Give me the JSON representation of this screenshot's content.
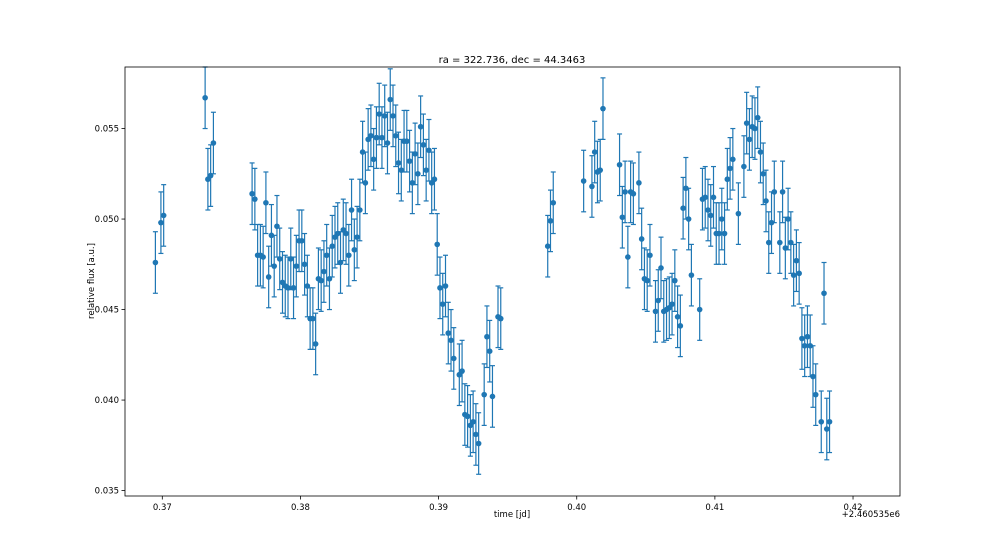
{
  "chart_data": {
    "type": "scatter",
    "title": "ra = 322.736, dec = 44.3463",
    "xlabel": "time [jd]",
    "ylabel": "relative flux [a.u.]",
    "x_offset_label": "+2.460535e6",
    "xlim": [
      0.3673,
      0.4234
    ],
    "ylim": [
      0.0347,
      0.0584
    ],
    "xticks": [
      0.37,
      0.38,
      0.39,
      0.4,
      0.41,
      0.42
    ],
    "xtick_labels": [
      "0.37",
      "0.38",
      "0.39",
      "0.40",
      "0.41",
      "0.42"
    ],
    "yticks": [
      0.035,
      0.04,
      0.045,
      0.05,
      0.055
    ],
    "ytick_labels": [
      "0.035",
      "0.040",
      "0.045",
      "0.050",
      "0.055"
    ],
    "grid": false,
    "legend": "none",
    "color": "#1f77b4",
    "points": [
      [
        0.3695,
        0.0476,
        0.0017
      ],
      [
        0.3699,
        0.0498,
        0.0017
      ],
      [
        0.3701,
        0.0502,
        0.0017
      ],
      [
        0.3731,
        0.0567,
        0.0017
      ],
      [
        0.3733,
        0.0522,
        0.0017
      ],
      [
        0.3735,
        0.0524,
        0.0017
      ],
      [
        0.3737,
        0.0542,
        0.0017
      ],
      [
        0.3765,
        0.0514,
        0.0017
      ],
      [
        0.3767,
        0.0511,
        0.0017
      ],
      [
        0.3769,
        0.048,
        0.0017
      ],
      [
        0.3771,
        0.048,
        0.0017
      ],
      [
        0.3773,
        0.0479,
        0.0017
      ],
      [
        0.3775,
        0.0509,
        0.0017
      ],
      [
        0.3777,
        0.0468,
        0.0017
      ],
      [
        0.3779,
        0.0491,
        0.0017
      ],
      [
        0.3781,
        0.0474,
        0.0017
      ],
      [
        0.3783,
        0.0496,
        0.0017
      ],
      [
        0.3785,
        0.0478,
        0.0017
      ],
      [
        0.3787,
        0.0465,
        0.0017
      ],
      [
        0.3789,
        0.0463,
        0.0017
      ],
      [
        0.3791,
        0.0462,
        0.0017
      ],
      [
        0.3793,
        0.0478,
        0.0017
      ],
      [
        0.3795,
        0.0462,
        0.0017
      ],
      [
        0.3797,
        0.0474,
        0.0017
      ],
      [
        0.3799,
        0.0488,
        0.0017
      ],
      [
        0.3801,
        0.0488,
        0.0017
      ],
      [
        0.3803,
        0.0475,
        0.0017
      ],
      [
        0.3805,
        0.0463,
        0.0017
      ],
      [
        0.3807,
        0.0445,
        0.0017
      ],
      [
        0.3809,
        0.0445,
        0.0017
      ],
      [
        0.3811,
        0.0431,
        0.0017
      ],
      [
        0.3813,
        0.0467,
        0.0017
      ],
      [
        0.3815,
        0.0466,
        0.0017
      ],
      [
        0.3817,
        0.0471,
        0.0017
      ],
      [
        0.3819,
        0.048,
        0.0017
      ],
      [
        0.3821,
        0.0467,
        0.0017
      ],
      [
        0.3823,
        0.0485,
        0.0017
      ],
      [
        0.3825,
        0.049,
        0.0017
      ],
      [
        0.3827,
        0.0492,
        0.0017
      ],
      [
        0.3829,
        0.0476,
        0.0017
      ],
      [
        0.3831,
        0.0494,
        0.0017
      ],
      [
        0.3833,
        0.0492,
        0.0017
      ],
      [
        0.3835,
        0.048,
        0.0017
      ],
      [
        0.3837,
        0.0505,
        0.0017
      ],
      [
        0.3839,
        0.0483,
        0.0017
      ],
      [
        0.3841,
        0.049,
        0.0017
      ],
      [
        0.3843,
        0.0505,
        0.0017
      ],
      [
        0.3845,
        0.0537,
        0.0017
      ],
      [
        0.3847,
        0.052,
        0.0017
      ],
      [
        0.3849,
        0.0544,
        0.0017
      ],
      [
        0.3851,
        0.0546,
        0.0017
      ],
      [
        0.3853,
        0.0533,
        0.0017
      ],
      [
        0.3855,
        0.0545,
        0.0017
      ],
      [
        0.3857,
        0.0558,
        0.0017
      ],
      [
        0.3859,
        0.0545,
        0.0017
      ],
      [
        0.3861,
        0.0557,
        0.0017
      ],
      [
        0.3863,
        0.0542,
        0.0017
      ],
      [
        0.3865,
        0.0566,
        0.0017
      ],
      [
        0.3867,
        0.0557,
        0.0017
      ],
      [
        0.3869,
        0.0546,
        0.0017
      ],
      [
        0.3871,
        0.0531,
        0.0017
      ],
      [
        0.3873,
        0.0527,
        0.0017
      ],
      [
        0.3875,
        0.0543,
        0.0017
      ],
      [
        0.3877,
        0.0543,
        0.0017
      ],
      [
        0.3879,
        0.0532,
        0.0017
      ],
      [
        0.3881,
        0.052,
        0.0017
      ],
      [
        0.3883,
        0.0536,
        0.0017
      ],
      [
        0.3885,
        0.0525,
        0.0017
      ],
      [
        0.3887,
        0.0551,
        0.0017
      ],
      [
        0.3889,
        0.0541,
        0.0017
      ],
      [
        0.3891,
        0.0527,
        0.0017
      ],
      [
        0.3893,
        0.0538,
        0.0017
      ],
      [
        0.3895,
        0.052,
        0.0017
      ],
      [
        0.3897,
        0.0522,
        0.0017
      ],
      [
        0.3899,
        0.0486,
        0.0017
      ],
      [
        0.3901,
        0.0462,
        0.0017
      ],
      [
        0.3903,
        0.0453,
        0.0017
      ],
      [
        0.3905,
        0.0463,
        0.0017
      ],
      [
        0.3907,
        0.0437,
        0.0017
      ],
      [
        0.3909,
        0.0433,
        0.0017
      ],
      [
        0.3911,
        0.0423,
        0.0017
      ],
      [
        0.3915,
        0.0414,
        0.0017
      ],
      [
        0.3917,
        0.0416,
        0.0017
      ],
      [
        0.3919,
        0.0392,
        0.0017
      ],
      [
        0.3921,
        0.0391,
        0.0017
      ],
      [
        0.3923,
        0.0386,
        0.0017
      ],
      [
        0.3925,
        0.0388,
        0.0017
      ],
      [
        0.3927,
        0.0381,
        0.0017
      ],
      [
        0.3929,
        0.0376,
        0.0017
      ],
      [
        0.3933,
        0.0403,
        0.0017
      ],
      [
        0.3935,
        0.0435,
        0.0017
      ],
      [
        0.3937,
        0.0427,
        0.0017
      ],
      [
        0.3939,
        0.0402,
        0.0017
      ],
      [
        0.3943,
        0.0446,
        0.0017
      ],
      [
        0.3945,
        0.0445,
        0.0017
      ],
      [
        0.3979,
        0.0485,
        0.0017
      ],
      [
        0.3981,
        0.0499,
        0.0017
      ],
      [
        0.3983,
        0.0509,
        0.0017
      ],
      [
        0.4005,
        0.0521,
        0.0017
      ],
      [
        0.4011,
        0.0518,
        0.0017
      ],
      [
        0.4013,
        0.0537,
        0.0017
      ],
      [
        0.4015,
        0.0526,
        0.0017
      ],
      [
        0.4017,
        0.0527,
        0.0017
      ],
      [
        0.4019,
        0.0561,
        0.0017
      ],
      [
        0.4031,
        0.053,
        0.0017
      ],
      [
        0.4033,
        0.0501,
        0.0017
      ],
      [
        0.4035,
        0.0515,
        0.0017
      ],
      [
        0.4037,
        0.0479,
        0.0017
      ],
      [
        0.4039,
        0.0515,
        0.0017
      ],
      [
        0.4041,
        0.0514,
        0.0017
      ],
      [
        0.4045,
        0.052,
        0.0017
      ],
      [
        0.4047,
        0.0489,
        0.0017
      ],
      [
        0.4049,
        0.0467,
        0.0017
      ],
      [
        0.4051,
        0.0466,
        0.0017
      ],
      [
        0.4053,
        0.048,
        0.0017
      ],
      [
        0.4057,
        0.0449,
        0.0017
      ],
      [
        0.4059,
        0.0455,
        0.0017
      ],
      [
        0.4061,
        0.0473,
        0.0017
      ],
      [
        0.4063,
        0.0449,
        0.0017
      ],
      [
        0.4065,
        0.045,
        0.0017
      ],
      [
        0.4067,
        0.0451,
        0.0017
      ],
      [
        0.4069,
        0.0453,
        0.0017
      ],
      [
        0.4071,
        0.0466,
        0.0017
      ],
      [
        0.4073,
        0.0446,
        0.0017
      ],
      [
        0.4075,
        0.0441,
        0.0017
      ],
      [
        0.4077,
        0.0506,
        0.0017
      ],
      [
        0.4079,
        0.0517,
        0.0017
      ],
      [
        0.4081,
        0.05,
        0.0017
      ],
      [
        0.4083,
        0.0469,
        0.0017
      ],
      [
        0.4089,
        0.045,
        0.0017
      ],
      [
        0.4091,
        0.0511,
        0.0017
      ],
      [
        0.4093,
        0.0512,
        0.0017
      ],
      [
        0.4095,
        0.0505,
        0.0017
      ],
      [
        0.4097,
        0.0502,
        0.0017
      ],
      [
        0.4099,
        0.0512,
        0.0017
      ],
      [
        0.4101,
        0.0492,
        0.0017
      ],
      [
        0.4103,
        0.0492,
        0.0017
      ],
      [
        0.4105,
        0.05,
        0.0017
      ],
      [
        0.4107,
        0.0492,
        0.0017
      ],
      [
        0.4109,
        0.0522,
        0.0017
      ],
      [
        0.4111,
        0.0528,
        0.0017
      ],
      [
        0.4113,
        0.0533,
        0.0017
      ],
      [
        0.4117,
        0.0503,
        0.0017
      ],
      [
        0.4121,
        0.0529,
        0.0017
      ],
      [
        0.4123,
        0.0553,
        0.0017
      ],
      [
        0.4125,
        0.0544,
        0.0017
      ],
      [
        0.4127,
        0.0551,
        0.0017
      ],
      [
        0.4129,
        0.055,
        0.0017
      ],
      [
        0.4131,
        0.0556,
        0.0017
      ],
      [
        0.4133,
        0.0537,
        0.0017
      ],
      [
        0.4135,
        0.0525,
        0.0017
      ],
      [
        0.4137,
        0.051,
        0.0017
      ],
      [
        0.4139,
        0.0487,
        0.0017
      ],
      [
        0.4141,
        0.0498,
        0.0017
      ],
      [
        0.4143,
        0.0515,
        0.0017
      ],
      [
        0.4147,
        0.0487,
        0.0017
      ],
      [
        0.4149,
        0.0515,
        0.0017
      ],
      [
        0.4151,
        0.0484,
        0.0017
      ],
      [
        0.4153,
        0.05,
        0.0017
      ],
      [
        0.4155,
        0.0487,
        0.0017
      ],
      [
        0.4157,
        0.0469,
        0.0017
      ],
      [
        0.4159,
        0.0477,
        0.0017
      ],
      [
        0.4161,
        0.047,
        0.0017
      ],
      [
        0.4163,
        0.0434,
        0.0017
      ],
      [
        0.4165,
        0.043,
        0.0017
      ],
      [
        0.4167,
        0.0435,
        0.0017
      ],
      [
        0.4169,
        0.043,
        0.0017
      ],
      [
        0.4171,
        0.0413,
        0.0017
      ],
      [
        0.4173,
        0.0403,
        0.0017
      ],
      [
        0.4177,
        0.0388,
        0.0017
      ],
      [
        0.4179,
        0.0459,
        0.0017
      ],
      [
        0.4181,
        0.0384,
        0.0017
      ],
      [
        0.4183,
        0.0388,
        0.0017
      ]
    ]
  }
}
